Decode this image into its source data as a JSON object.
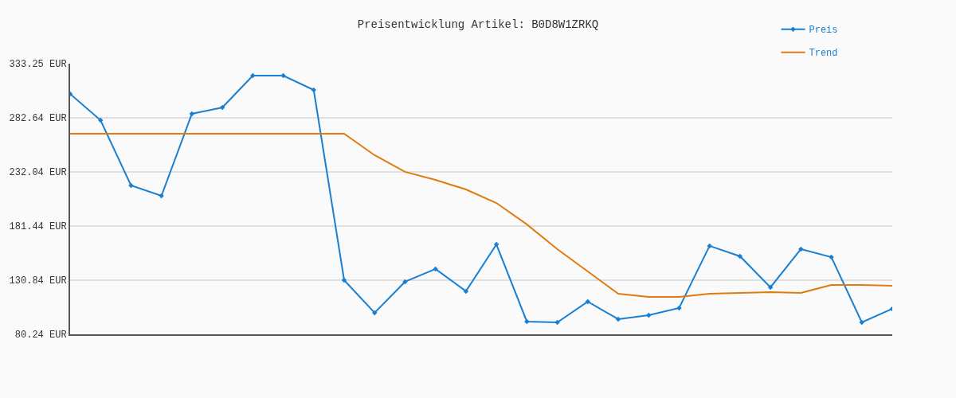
{
  "chart_data": {
    "type": "line",
    "title": "Preisentwicklung Artikel: B0D8W1ZRKQ",
    "categories": [
      null,
      null,
      null,
      null,
      null,
      null,
      null,
      null,
      null,
      null,
      null,
      null,
      null,
      null,
      null,
      null,
      null,
      null,
      null,
      null,
      null,
      null,
      null,
      null,
      null,
      null,
      null,
      null
    ],
    "series": [
      {
        "name": "Preis",
        "color": "#1a7fd0",
        "marker": "diamond",
        "values": [
          305.0,
          280.4,
          219.4,
          209.7,
          286.4,
          292.3,
          322.1,
          322.1,
          308.7,
          130.9,
          100.4,
          129.4,
          141.3,
          120.5,
          164.3,
          92.2,
          91.4,
          110.8,
          94.4,
          98.1,
          104.8,
          162.9,
          153.2,
          124.2,
          159.9,
          152.4,
          91.4,
          104.1
        ]
      },
      {
        "name": "Trend",
        "color": "#e07b10",
        "marker": "none",
        "values": [
          267.8,
          267.8,
          267.8,
          267.8,
          267.8,
          267.8,
          267.8,
          267.8,
          267.8,
          267.8,
          247.7,
          232.1,
          224.6,
          215.7,
          203.0,
          183.0,
          159.9,
          139.0,
          118.2,
          115.2,
          115.2,
          118.2,
          119.0,
          119.7,
          119.0,
          126.4,
          126.4,
          125.6
        ]
      }
    ],
    "ylim": [
      80.24,
      333.25
    ],
    "yticks": [
      {
        "value": 80.24,
        "label": "80.24 EUR"
      },
      {
        "value": 130.84,
        "label": "130.84 EUR"
      },
      {
        "value": 181.44,
        "label": "181.44 EUR"
      },
      {
        "value": 232.04,
        "label": "232.04 EUR"
      },
      {
        "value": 282.64,
        "label": "282.64 EUR"
      },
      {
        "value": 333.25,
        "label": "333.25 EUR"
      }
    ],
    "grid": "y",
    "legend": "top right",
    "line_style": "solid",
    "tick_labels": "y"
  }
}
